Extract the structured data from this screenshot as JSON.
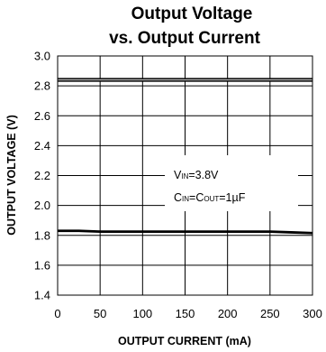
{
  "chart_data": {
    "type": "line",
    "title": [
      "Output Voltage",
      "vs. Output Current"
    ],
    "xlabel": "OUTPUT CURRENT (mA)",
    "ylabel": "OUTPUT VOLTAGE (V)",
    "xlim": [
      0,
      300
    ],
    "ylim": [
      1.4,
      3.0
    ],
    "xticks": [
      0,
      50,
      100,
      150,
      200,
      250,
      300
    ],
    "xtick_labels": [
      "0",
      "50",
      "100",
      "150",
      "200",
      "250",
      "300"
    ],
    "yticks": [
      1.4,
      1.6,
      1.8,
      2.0,
      2.2,
      2.4,
      2.6,
      2.8,
      3.0
    ],
    "ytick_labels": [
      "1.4",
      "1.6",
      "1.8",
      "2.0",
      "2.2",
      "2.4",
      "2.6",
      "2.8",
      "3.0"
    ],
    "grid": true,
    "series": [
      {
        "x": [
          0,
          300
        ],
        "y": [
          2.84,
          2.84
        ],
        "color": "#000000",
        "style": "double"
      },
      {
        "x": [
          0,
          25,
          50,
          100,
          150,
          200,
          250,
          275,
          300
        ],
        "y": [
          1.83,
          1.83,
          1.825,
          1.825,
          1.825,
          1.825,
          1.825,
          1.82,
          1.815
        ],
        "color": "#000000",
        "style": "solid"
      }
    ],
    "annotations": [
      {
        "pre": "V",
        "sub": "IN",
        "post": "=3.8V"
      },
      {
        "pre": "C",
        "sub": "IN",
        "mid": "=C",
        "sub2": "OUT",
        "post": "=1µF"
      }
    ]
  }
}
